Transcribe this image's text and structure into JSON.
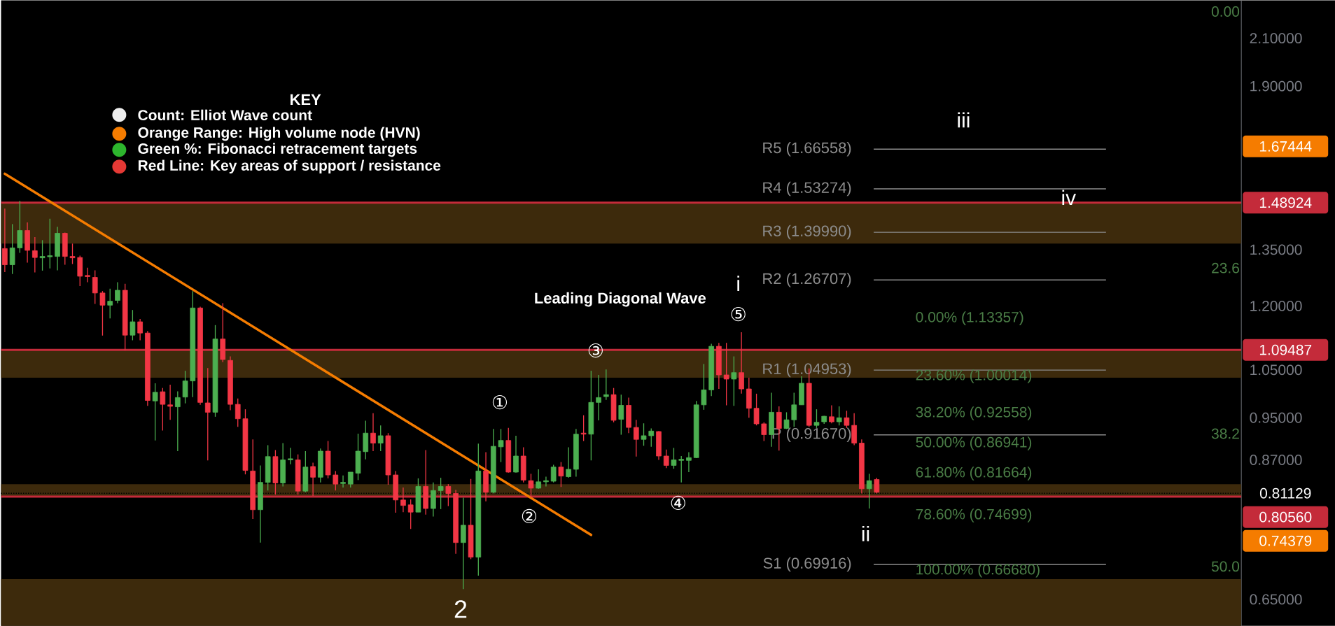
{
  "chart_data": {
    "type": "candlestick",
    "tick_labels": "y",
    "log": true,
    "categories": [
      null,
      null,
      null,
      null,
      null,
      null,
      null,
      null,
      null,
      null,
      null,
      null,
      null,
      null,
      null,
      null,
      null,
      null,
      null,
      null,
      null,
      null,
      null,
      null,
      null,
      null,
      null,
      null,
      null,
      null,
      null,
      null,
      null,
      null,
      null,
      null,
      null,
      null,
      null,
      null,
      null,
      null,
      null,
      null,
      null,
      null,
      null,
      null,
      null,
      null,
      null,
      null,
      null,
      null,
      null,
      null,
      null,
      null,
      null,
      null,
      null,
      null,
      null,
      null,
      null,
      null,
      null,
      null,
      null,
      null,
      null,
      null,
      null,
      null,
      null,
      null,
      null,
      null,
      null,
      null,
      null,
      null,
      null,
      null,
      null,
      null,
      null,
      null,
      null,
      null,
      null,
      null,
      null,
      null,
      null,
      null,
      null,
      null,
      null,
      null,
      null,
      null,
      null,
      null,
      null,
      null,
      null,
      null,
      null,
      null,
      null,
      null,
      null,
      null,
      null,
      null,
      null,
      null,
      null,
      null,
      null,
      null,
      null,
      null,
      null,
      null,
      null,
      null,
      null,
      null,
      null,
      null,
      null,
      null,
      null,
      null,
      null,
      null,
      null,
      null,
      null,
      null,
      null,
      null,
      null,
      null,
      null,
      null,
      null,
      null,
      null,
      null,
      null,
      null,
      null,
      null,
      null,
      null,
      null,
      null,
      null,
      null,
      null,
      null,
      null
    ],
    "ohlc": [
      [
        1.353,
        1.471,
        1.288,
        1.308
      ],
      [
        1.308,
        1.424,
        1.283,
        1.355
      ],
      [
        1.355,
        1.495,
        1.341,
        1.405
      ],
      [
        1.405,
        1.429,
        1.314,
        1.348
      ],
      [
        1.347,
        1.386,
        1.287,
        1.328
      ],
      [
        1.327,
        1.377,
        1.292,
        1.331
      ],
      [
        1.33,
        1.44,
        1.298,
        1.333
      ],
      [
        1.331,
        1.416,
        1.293,
        1.397
      ],
      [
        1.397,
        1.399,
        1.308,
        1.331
      ],
      [
        1.331,
        1.367,
        1.31,
        1.327
      ],
      [
        1.328,
        1.333,
        1.251,
        1.277
      ],
      [
        1.279,
        1.3,
        1.261,
        1.276
      ],
      [
        1.274,
        1.293,
        1.205,
        1.233
      ],
      [
        1.233,
        1.238,
        1.128,
        1.202
      ],
      [
        1.202,
        1.244,
        1.169,
        1.212
      ],
      [
        1.214,
        1.261,
        1.207,
        1.24
      ],
      [
        1.24,
        1.257,
        1.094,
        1.129
      ],
      [
        1.129,
        1.19,
        1.117,
        1.161
      ],
      [
        1.161,
        1.168,
        1.117,
        1.134
      ],
      [
        1.134,
        1.139,
        0.974,
        0.985
      ],
      [
        0.984,
        1.021,
        0.906,
        1.002
      ],
      [
        1.003,
        1.011,
        0.925,
        0.977
      ],
      [
        0.976,
        1.018,
        0.946,
        0.973
      ],
      [
        0.972,
        1.004,
        0.886,
        0.991
      ],
      [
        0.992,
        1.048,
        0.979,
        1.026
      ],
      [
        1.026,
        1.238,
        0.992,
        1.195
      ],
      [
        1.195,
        1.198,
        0.976,
        0.981
      ],
      [
        0.98,
        1.054,
        0.869,
        0.961
      ],
      [
        0.961,
        1.153,
        0.952,
        1.12
      ],
      [
        1.12,
        1.207,
        1.067,
        1.073
      ],
      [
        1.071,
        1.08,
        0.965,
        0.977
      ],
      [
        0.977,
        0.989,
        0.932,
        0.948
      ],
      [
        0.948,
        0.967,
        0.844,
        0.851
      ],
      [
        0.85,
        0.908,
        0.769,
        0.784
      ],
      [
        0.784,
        0.86,
        0.732,
        0.83
      ],
      [
        0.83,
        0.897,
        0.816,
        0.876
      ],
      [
        0.876,
        0.888,
        0.809,
        0.829
      ],
      [
        0.829,
        0.901,
        0.823,
        0.87
      ],
      [
        0.87,
        0.892,
        0.862,
        0.872
      ],
      [
        0.87,
        0.88,
        0.809,
        0.815
      ],
      [
        0.815,
        0.886,
        0.813,
        0.857
      ],
      [
        0.858,
        0.865,
        0.807,
        0.839
      ],
      [
        0.839,
        0.891,
        0.83,
        0.886
      ],
      [
        0.886,
        0.905,
        0.837,
        0.843
      ],
      [
        0.843,
        0.85,
        0.816,
        0.827
      ],
      [
        0.828,
        0.842,
        0.821,
        0.83
      ],
      [
        0.827,
        0.848,
        0.821,
        0.848
      ],
      [
        0.846,
        0.919,
        0.834,
        0.886
      ],
      [
        0.885,
        0.944,
        0.871,
        0.92
      ],
      [
        0.92,
        0.959,
        0.886,
        0.901
      ],
      [
        0.901,
        0.935,
        0.886,
        0.915
      ],
      [
        0.915,
        0.92,
        0.826,
        0.843
      ],
      [
        0.843,
        0.85,
        0.779,
        0.8
      ],
      [
        0.8,
        0.821,
        0.78,
        0.791
      ],
      [
        0.792,
        0.801,
        0.753,
        0.78
      ],
      [
        0.78,
        0.837,
        0.78,
        0.823
      ],
      [
        0.823,
        0.888,
        0.776,
        0.786
      ],
      [
        0.786,
        0.83,
        0.773,
        0.816
      ],
      [
        0.816,
        0.838,
        0.785,
        0.823
      ],
      [
        0.823,
        0.827,
        0.79,
        0.811
      ],
      [
        0.811,
        0.817,
        0.715,
        0.732
      ],
      [
        0.732,
        0.804,
        0.664,
        0.759
      ],
      [
        0.759,
        0.836,
        0.707,
        0.71
      ],
      [
        0.71,
        0.9,
        0.683,
        0.85
      ],
      [
        0.85,
        0.884,
        0.798,
        0.813
      ],
      [
        0.813,
        0.928,
        0.811,
        0.895
      ],
      [
        0.894,
        0.928,
        0.866,
        0.906
      ],
      [
        0.906,
        0.93,
        0.847,
        0.848
      ],
      [
        0.848,
        0.915,
        0.847,
        0.877
      ],
      [
        0.877,
        0.893,
        0.83,
        0.834
      ],
      [
        0.833,
        0.845,
        0.804,
        0.82
      ],
      [
        0.82,
        0.853,
        0.819,
        0.831
      ],
      [
        0.831,
        0.84,
        0.823,
        0.833
      ],
      [
        0.832,
        0.861,
        0.83,
        0.857
      ],
      [
        0.857,
        0.866,
        0.822,
        0.841
      ],
      [
        0.84,
        0.893,
        0.838,
        0.853
      ],
      [
        0.853,
        0.928,
        0.84,
        0.918
      ],
      [
        0.92,
        0.955,
        0.905,
        0.918
      ],
      [
        0.918,
        1.048,
        0.869,
        0.981
      ],
      [
        0.981,
        1.039,
        0.945,
        0.991
      ],
      [
        0.993,
        1.051,
        0.986,
        0.997
      ],
      [
        0.997,
        1.011,
        0.941,
        0.945
      ],
      [
        0.947,
        0.997,
        0.917,
        0.975
      ],
      [
        0.975,
        0.991,
        0.92,
        0.931
      ],
      [
        0.931,
        0.946,
        0.876,
        0.908
      ],
      [
        0.908,
        0.939,
        0.896,
        0.915
      ],
      [
        0.915,
        0.929,
        0.894,
        0.924
      ],
      [
        0.923,
        0.924,
        0.87,
        0.877
      ],
      [
        0.877,
        0.889,
        0.855,
        0.86
      ],
      [
        0.86,
        0.892,
        0.854,
        0.87
      ],
      [
        0.869,
        0.877,
        0.83,
        0.871
      ],
      [
        0.869,
        0.884,
        0.848,
        0.874
      ],
      [
        0.874,
        0.984,
        0.873,
        0.976
      ],
      [
        0.976,
        1.063,
        0.966,
        1.007
      ],
      [
        1.007,
        1.109,
        0.994,
        1.103
      ],
      [
        1.103,
        1.111,
        1.009,
        1.039
      ],
      [
        1.039,
        1.111,
        0.975,
        1.03
      ],
      [
        1.03,
        1.08,
        0.974,
        1.044
      ],
      [
        1.044,
        1.136,
        0.999,
        1.009
      ],
      [
        1.009,
        1.033,
        0.95,
        0.969
      ],
      [
        0.969,
        0.999,
        0.935,
        0.938
      ],
      [
        0.938,
        0.941,
        0.905,
        0.917
      ],
      [
        0.917,
        1.001,
        0.894,
        0.961
      ],
      [
        0.961,
        0.973,
        0.887,
        0.929
      ],
      [
        0.929,
        0.961,
        0.928,
        0.946
      ],
      [
        0.946,
        1.001,
        0.932,
        0.976
      ],
      [
        0.976,
        1.036,
        0.976,
        1.021
      ],
      [
        1.021,
        1.053,
        0.932,
        0.935
      ],
      [
        0.935,
        0.967,
        0.93,
        0.941
      ],
      [
        0.942,
        0.954,
        0.938,
        0.953
      ],
      [
        0.952,
        0.975,
        0.939,
        0.942
      ],
      [
        0.942,
        0.973,
        0.935,
        0.95
      ],
      [
        0.95,
        0.964,
        0.93,
        0.935
      ],
      [
        0.935,
        0.959,
        0.897,
        0.901
      ],
      [
        0.901,
        0.908,
        0.811,
        0.819
      ],
      [
        0.819,
        0.845,
        0.786,
        0.833
      ],
      [
        0.835,
        0.838,
        0.811,
        0.813
      ],
      null,
      null,
      null,
      null,
      null,
      null,
      null,
      null,
      null,
      null,
      null,
      null,
      null,
      null,
      null,
      null,
      null,
      null,
      null,
      null,
      null,
      null,
      null,
      null,
      null,
      null,
      null,
      null,
      null,
      null,
      null,
      null,
      null,
      null,
      null,
      null,
      null,
      null,
      null,
      null,
      null,
      null,
      null,
      null,
      null,
      null,
      null,
      null
    ],
    "colors": [
      "#f23645",
      "#4caf50",
      "#4caf50",
      "#f23645",
      "#f23645",
      "#4caf50",
      "#4caf50",
      "#4caf50",
      "#f23645",
      "#f23645",
      "#f23645",
      "#f23645",
      "#f23645",
      "#f23645",
      "#4caf50",
      "#4caf50",
      "#f23645",
      "#4caf50",
      "#f23645",
      "#f23645",
      "#4caf50",
      "#f23645",
      "#f23645",
      "#4caf50",
      "#4caf50",
      "#4caf50",
      "#f23645",
      "#f23645",
      "#4caf50",
      "#f23645",
      "#f23645",
      "#f23645",
      "#f23645",
      "#f23645",
      "#4caf50",
      "#4caf50",
      "#f23645",
      "#4caf50",
      "#4caf50",
      "#f23645",
      "#4caf50",
      "#f23645",
      "#4caf50",
      "#f23645",
      "#f23645",
      "#4caf50",
      "#4caf50",
      "#4caf50",
      "#4caf50",
      "#f23645",
      "#4caf50",
      "#f23645",
      "#f23645",
      "#f23645",
      "#f23645",
      "#4caf50",
      "#f23645",
      "#4caf50",
      "#4caf50",
      "#f23645",
      "#f23645",
      "#4caf50",
      "#f23645",
      "#4caf50",
      "#f23645",
      "#4caf50",
      "#4caf50",
      "#f23645",
      "#4caf50",
      "#f23645",
      "#f23645",
      "#4caf50",
      "#4caf50",
      "#4caf50",
      "#f23645",
      "#4caf50",
      "#4caf50",
      "#f23645",
      "#4caf50",
      "#4caf50",
      "#4caf50",
      "#f23645",
      "#4caf50",
      "#f23645",
      "#f23645",
      "#4caf50",
      "#4caf50",
      "#f23645",
      "#f23645",
      "#4caf50",
      "#4caf50",
      "#4caf50",
      "#4caf50",
      "#4caf50",
      "#4caf50",
      "#f23645",
      "#f23645",
      "#4caf50",
      "#f23645",
      "#f23645",
      "#f23645",
      "#f23645",
      "#4caf50",
      "#f23645",
      "#4caf50",
      "#4caf50",
      "#4caf50",
      "#f23645",
      "#4caf50",
      "#4caf50",
      "#f23645",
      "#4caf50",
      "#f23645",
      "#f23645",
      "#f23645",
      "#4caf50",
      "#f23645",
      null,
      null,
      null,
      null,
      null,
      null,
      null,
      null,
      null,
      null,
      null,
      null,
      null,
      null,
      null,
      null,
      null,
      null,
      null,
      null,
      null,
      null,
      null,
      null,
      null,
      null,
      null,
      null,
      null,
      null,
      null,
      null,
      null,
      null,
      null,
      null,
      null,
      null,
      null,
      null,
      null,
      null,
      null,
      null,
      null,
      null,
      null,
      null
    ],
    "series": [
      {
        "type": "line",
        "color": "#f57c00",
        "values": [
          1.582,
          null,
          null,
          null,
          null,
          null,
          null,
          null,
          null,
          null,
          null,
          null,
          null,
          null,
          null,
          null,
          null,
          null,
          null,
          null,
          null,
          null,
          null,
          null,
          null,
          null,
          null,
          null,
          null,
          null,
          null,
          null,
          null,
          null,
          null,
          null,
          null,
          null,
          null,
          null,
          null,
          null,
          null,
          null,
          null,
          null,
          null,
          null,
          null,
          null,
          null,
          null,
          null,
          null,
          null,
          null,
          null,
          null,
          null,
          null,
          null,
          null,
          null,
          null,
          null,
          null,
          null,
          null,
          null,
          null,
          null,
          null,
          null,
          null,
          null,
          null,
          null,
          null,
          0.7437,
          null,
          null,
          null,
          null,
          null,
          null,
          null,
          null,
          null,
          null,
          null,
          null,
          null,
          null,
          null,
          null,
          null,
          null,
          null,
          null,
          null,
          null,
          null,
          null,
          null,
          null,
          null,
          null,
          null,
          null,
          null,
          null,
          null,
          null,
          null,
          null,
          null,
          null,
          null,
          null,
          null,
          null,
          null,
          null,
          null,
          null,
          null,
          null,
          null,
          null,
          null,
          null,
          null,
          null,
          null,
          null,
          null,
          null,
          null,
          null,
          null,
          null,
          null,
          null,
          null,
          null,
          null,
          null,
          null,
          null,
          null,
          null,
          null,
          null,
          null,
          null,
          null,
          null,
          null,
          null,
          null,
          null,
          null,
          null,
          null,
          null
        ]
      }
    ],
    "ylim": [
      0.615,
      2.273
    ],
    "yticks": [
      {
        "value": 0.65,
        "label": "0.65000"
      },
      {
        "value": 0.87,
        "label": "0.87000"
      },
      {
        "value": 0.95,
        "label": "0.95000"
      },
      {
        "value": 1.05,
        "label": "1.05000"
      },
      {
        "value": 1.2,
        "label": "1.20000"
      },
      {
        "value": 1.35,
        "label": "1.35000"
      },
      {
        "value": 1.9,
        "label": "1.90000"
      },
      {
        "value": 2.1,
        "label": "2.10000"
      }
    ],
    "bands": [
      {
        "axis": "y",
        "from": 1.367,
        "to": 1.48924,
        "color": "#3d2a0c"
      },
      {
        "axis": "y",
        "from": 1.033,
        "to": 1.09487,
        "color": "#3d2a0c"
      },
      {
        "axis": "y",
        "from": 0.8056,
        "to": 0.827,
        "color": "#3d2a0c"
      },
      {
        "axis": "y",
        "from": 0.615,
        "to": 0.678,
        "color": "#3d2a0c"
      }
    ],
    "ref_lines": [
      {
        "axis": "y",
        "value": 1.48924,
        "label": "1.48924",
        "color": "#c42b3a"
      },
      {
        "axis": "y",
        "value": 1.09487,
        "label": "1.09487",
        "color": "#c42b3a"
      },
      {
        "axis": "y",
        "value": 0.8056,
        "label": "0.80560",
        "color": "#c42b3a"
      },
      {
        "axis": "y",
        "value": 0.81129,
        "label": "0.81129",
        "color": "#000000",
        "line_style": "dotted"
      },
      {
        "axis": "y",
        "value": 1.66558,
        "label": "R5 (1.66558)",
        "color": "#8c8c8c"
      },
      {
        "axis": "y",
        "value": 1.53274,
        "label": "R4 (1.53274)",
        "color": "#8c8c8c"
      },
      {
        "axis": "y",
        "value": 1.3999,
        "label": "R3 (1.39990)",
        "color": "#8c8c8c"
      },
      {
        "axis": "y",
        "value": 1.26707,
        "label": "R2 (1.26707)",
        "color": "#8c8c8c"
      },
      {
        "axis": "y",
        "value": 1.04953,
        "label": "R1 (1.04953)",
        "color": "#8c8c8c"
      },
      {
        "axis": "y",
        "value": 0.9167,
        "label": "P (0.91670)",
        "color": "#8c8c8c"
      },
      {
        "axis": "y",
        "value": 0.69916,
        "label": "S1 (0.69916)",
        "color": "#8c8c8c"
      }
    ],
    "annotations": [
      "KEY",
      "Count: Elliot Wave count",
      "Orange Range: High volume node (HVN)",
      "Green %: Fibonacci retracement targets",
      "Red Line: Key areas of support / resistance",
      "Leading Diagonal Wave",
      "①",
      "②",
      "③",
      "④",
      "⑤",
      "i",
      "ii",
      "iii",
      "iv",
      "2",
      "0.00% (1.13357)",
      "23.60% (1.00014)",
      "38.20% (0.92558)",
      "50.00% (0.86941)",
      "61.80% (0.81664)",
      "78.60% (0.74699)",
      "100.00% (0.66680)",
      "1.67444",
      "0.74379",
      "0.00",
      "23.6",
      "38.2",
      "50.0"
    ]
  }
}
